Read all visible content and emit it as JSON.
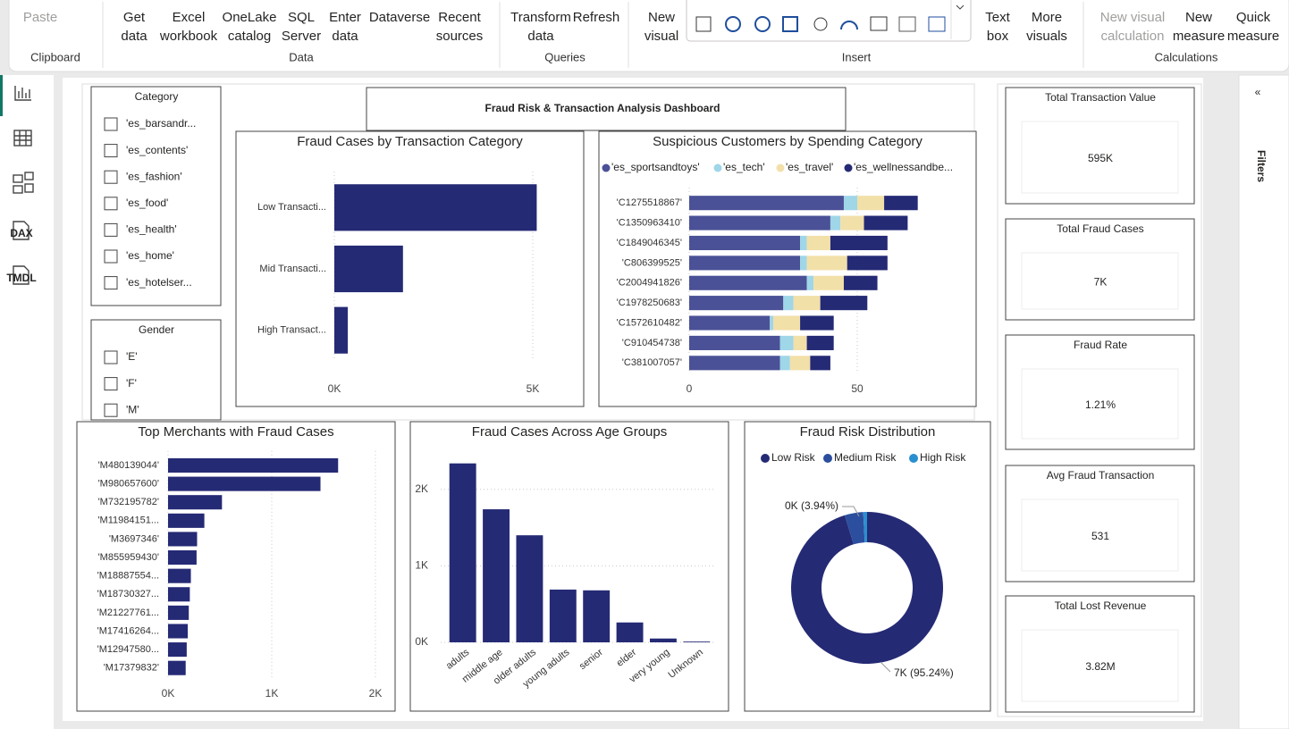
{
  "ribbon": {
    "groups": [
      {
        "label": "Clipboard",
        "buttons": [
          [
            "Paste"
          ]
        ]
      },
      {
        "label": "Data",
        "buttons": [
          [
            "Get",
            "data"
          ],
          [
            "Excel",
            "workbook"
          ],
          [
            "OneLake",
            "catalog"
          ],
          [
            "SQL",
            "Server"
          ],
          [
            "Enter",
            "data"
          ],
          [
            "Dataverse"
          ],
          [
            "Recent",
            "sources"
          ]
        ]
      },
      {
        "label": "Queries",
        "buttons": [
          [
            "Transform",
            "data"
          ],
          [
            "Refresh"
          ]
        ]
      },
      {
        "label": "Insert",
        "buttons": [
          [
            "New",
            "visual"
          ],
          [
            "Text",
            "box"
          ],
          [
            "More",
            "visuals"
          ]
        ]
      },
      {
        "label": "Calculations",
        "buttons": [
          [
            "New visual",
            "calculation"
          ],
          [
            "New",
            "measure"
          ],
          [
            "Quick",
            "measure"
          ]
        ]
      }
    ]
  },
  "sidebar": [
    "DAX",
    "TMDL"
  ],
  "filters_pane": {
    "title": "Filters"
  },
  "dashboard_title": "Fraud Risk & Transaction Analysis Dashboard",
  "slicers": [
    {
      "title": "Category",
      "items": [
        "'es_barsandr...",
        "'es_contents'",
        "'es_fashion'",
        "'es_food'",
        "'es_health'",
        "'es_home'",
        "'es_hotelser..."
      ]
    },
    {
      "title": "Gender",
      "items": [
        "'E'",
        "'F'",
        "'M'"
      ]
    }
  ],
  "cards": [
    {
      "title": "Total Transaction Value",
      "value": "595K"
    },
    {
      "title": "Total Fraud Cases",
      "value": "7K"
    },
    {
      "title": "Fraud Rate",
      "value": "1.21%"
    },
    {
      "title": "Avg Fraud Transaction",
      "value": "531"
    },
    {
      "title": "Total Lost Revenue",
      "value": "3.82M"
    }
  ],
  "chart_data": [
    {
      "type": "bar",
      "horizontal": true,
      "title": "Fraud Cases by Transaction Category",
      "categories": [
        "Low Transacti...",
        "Mid Transacti...",
        "High Transact..."
      ],
      "values": [
        5100,
        1730,
        340
      ],
      "color": "#252a75",
      "xlim": [
        0,
        6000
      ],
      "xticks": [
        {
          "value": 0,
          "label": "0K"
        },
        {
          "value": 5000,
          "label": "5K"
        }
      ],
      "grid": true
    },
    {
      "type": "bar",
      "horizontal": true,
      "stacked": true,
      "title": "Suspicious Customers by Spending Category",
      "categories": [
        "'C1275518867'",
        "'C1350963410'",
        "'C1849046345'",
        "'C806399525'",
        "'C2004941826'",
        "'C1978250683'",
        "'C1572610482'",
        "'C910454738'",
        "'C381007057'"
      ],
      "series": [
        {
          "name": "'es_sportsandtoys'",
          "color": "#4b5196",
          "values": [
            46,
            42,
            33,
            33,
            35,
            28,
            24,
            27,
            27
          ]
        },
        {
          "name": "'es_tech'",
          "color": "#9fd6e8",
          "values": [
            4,
            3,
            2,
            2,
            2,
            3,
            1,
            4,
            3
          ]
        },
        {
          "name": "'es_travel'",
          "color": "#f2e0a9",
          "values": [
            8,
            7,
            7,
            12,
            9,
            8,
            8,
            4,
            6
          ]
        },
        {
          "name": "'es_wellnessandbe...",
          "color": "#252a75",
          "values": [
            10,
            13,
            17,
            12,
            10,
            14,
            10,
            8,
            6
          ]
        }
      ],
      "xlim": [
        0,
        80
      ],
      "xticks": [
        0,
        50
      ],
      "grid": true
    },
    {
      "type": "bar",
      "horizontal": true,
      "title": "Top Merchants with Fraud Cases",
      "categories": [
        "'M480139044'",
        "'M980657600'",
        "'M732195782'",
        "'M11984151...",
        "'M3697346'",
        "'M855959430'",
        "'M18887554...",
        "'M18730327...",
        "'M21227761...",
        "'M17416264...",
        "'M12947580...",
        "'M17379832'"
      ],
      "values": [
        1640,
        1470,
        520,
        350,
        280,
        275,
        220,
        210,
        200,
        190,
        180,
        170
      ],
      "color": "#252a75",
      "xlim": [
        0,
        2000
      ],
      "xticks": [
        {
          "value": 0,
          "label": "0K"
        },
        {
          "value": 1000,
          "label": "1K"
        },
        {
          "value": 2000,
          "label": "2K"
        }
      ],
      "grid": true
    },
    {
      "type": "bar",
      "title": "Fraud Cases Across Age Groups",
      "categories": [
        "adults",
        "middle age",
        "older adults",
        "young adults",
        "senior",
        "elder",
        "very young",
        "Unknown"
      ],
      "values": [
        2340,
        1740,
        1400,
        690,
        680,
        260,
        50,
        10
      ],
      "color": "#252a75",
      "ylim": [
        0,
        2500
      ],
      "yticks": [
        {
          "value": 0,
          "label": "0K"
        },
        {
          "value": 1000,
          "label": "1K"
        },
        {
          "value": 2000,
          "label": "2K"
        }
      ],
      "grid": true
    },
    {
      "type": "donut",
      "title": "Fraud Risk Distribution",
      "categories": [
        "Low Risk",
        "Medium Risk",
        "High Risk"
      ],
      "values": [
        95.24,
        3.94,
        0.82
      ],
      "value_labels": [
        "7K (95.24%)",
        "0K (3.94%)",
        null
      ],
      "colors": [
        "#252a75",
        "#2b4f9e",
        "#2a8fd0"
      ]
    }
  ]
}
